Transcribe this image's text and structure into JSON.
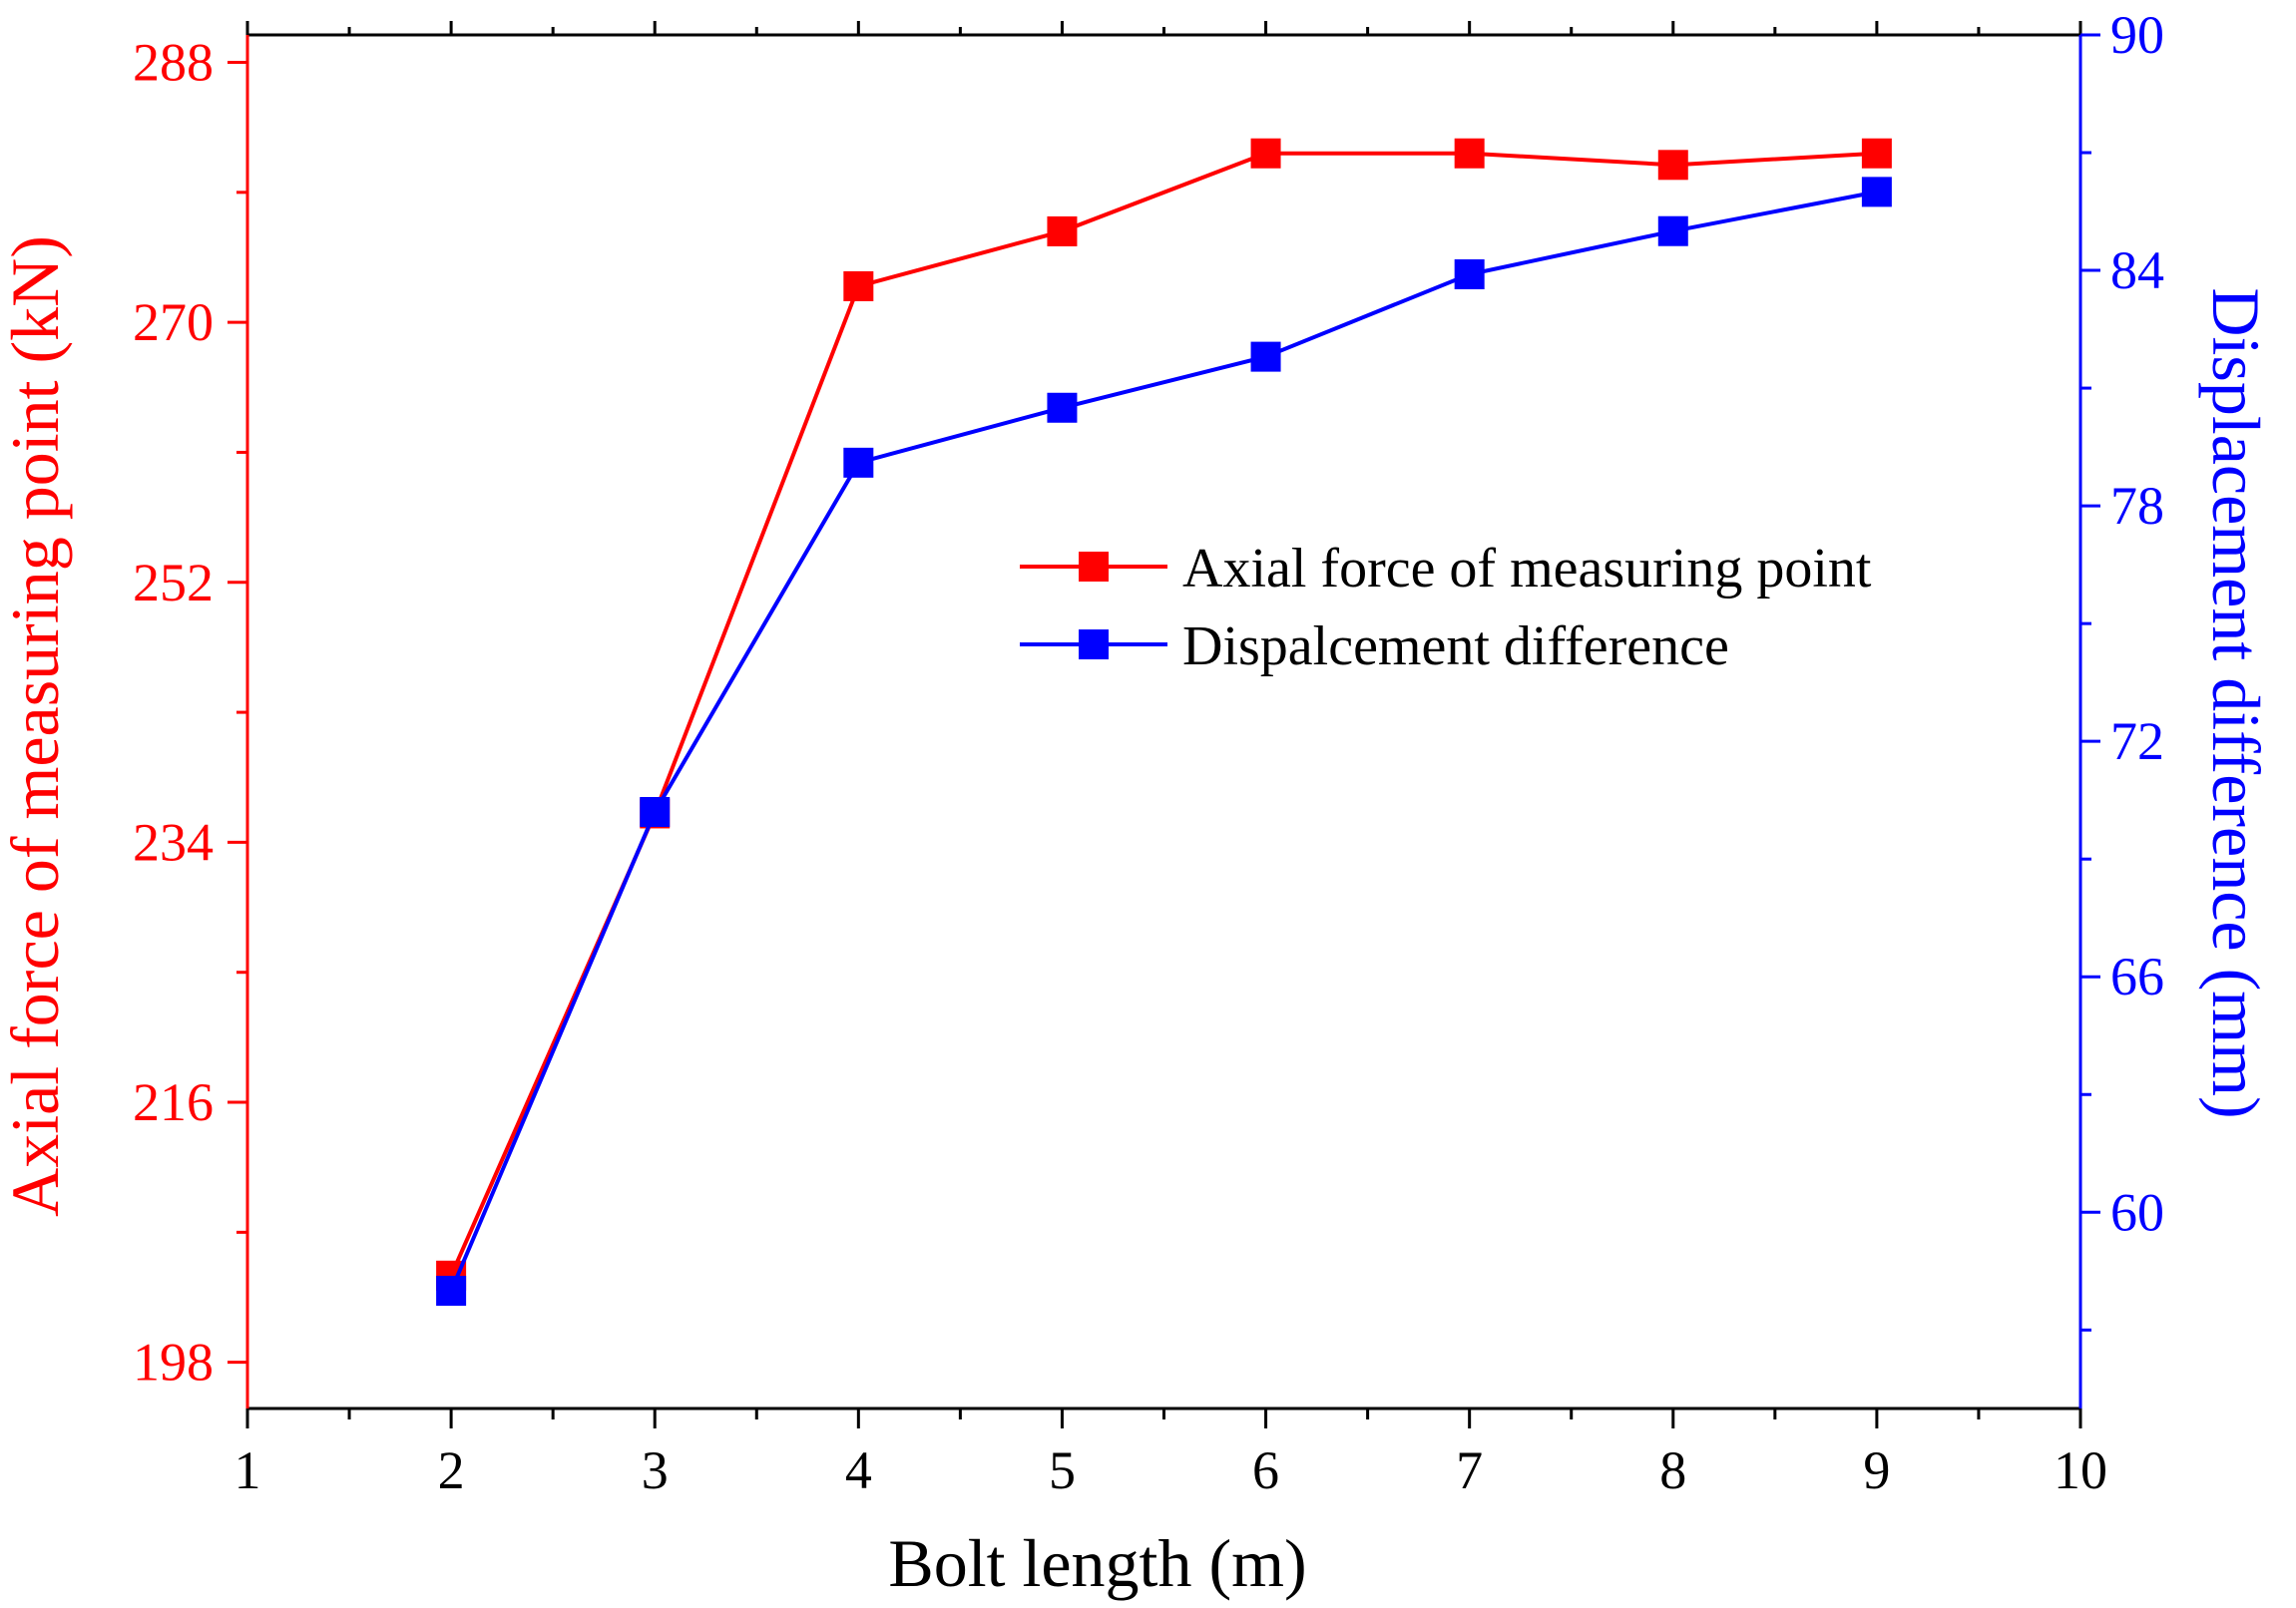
{
  "chart_data": {
    "type": "line",
    "title": "",
    "xlabel": "Bolt length (m)",
    "ylabel_left": "Axial force of measuring point (kN)",
    "ylabel_right": "Displacement difference (mm)",
    "xlim": [
      1,
      10
    ],
    "xticks": [
      1,
      2,
      3,
      4,
      5,
      6,
      7,
      8,
      9,
      10
    ],
    "ylim_left": [
      194.8,
      289.9
    ],
    "yticks_left": [
      198,
      216,
      234,
      252,
      270,
      288
    ],
    "ylim_right": [
      55.0,
      90.0
    ],
    "yticks_right": [
      60,
      66,
      72,
      78,
      84,
      90
    ],
    "grid": false,
    "legend_position": "center-right",
    "colors": {
      "left": "#ff0000",
      "right": "#0000ff",
      "frame": "#000000"
    },
    "series": [
      {
        "name": "Axial force of measuring point",
        "axis": "left",
        "color": "#ff0000",
        "marker": "square",
        "x": [
          2,
          3,
          4,
          5,
          6,
          7,
          8,
          9
        ],
        "values": [
          204.0,
          236.0,
          272.5,
          276.3,
          281.7,
          281.7,
          280.9,
          281.7
        ]
      },
      {
        "name": "Dispalcement difference",
        "axis": "right",
        "color": "#0000ff",
        "marker": "square",
        "x": [
          2,
          3,
          4,
          5,
          6,
          7,
          8,
          9
        ],
        "values": [
          58.0,
          70.2,
          79.1,
          80.5,
          81.8,
          83.9,
          85.0,
          86.0
        ]
      }
    ]
  }
}
